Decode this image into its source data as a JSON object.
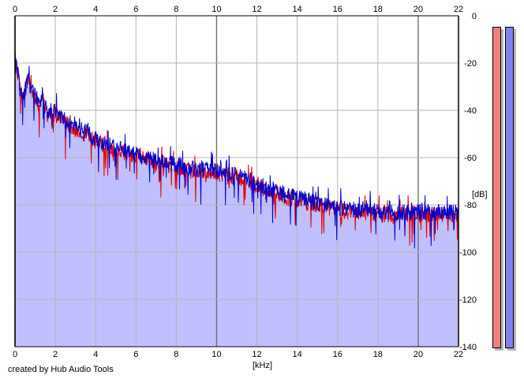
{
  "app": {
    "credit": "created by Hub Audio Tools"
  },
  "colors": {
    "fill": "#c0c0ff",
    "channel_left": "#e00000",
    "channel_right": "#0000d0",
    "meter_left": "#f08080",
    "meter_right": "#8080f0",
    "grid": "#b4b4b4",
    "grid_major": "#6e6e6e"
  },
  "meters": {
    "left": {
      "level_fraction": 1.0
    },
    "right": {
      "level_fraction": 1.0
    }
  },
  "chart_data": {
    "type": "area",
    "title": "",
    "xlabel": "[kHz]",
    "ylabel": "[dB]",
    "xlim": [
      0,
      22
    ],
    "ylim": [
      -140,
      0
    ],
    "x_ticks": [
      0,
      2,
      4,
      6,
      8,
      10,
      12,
      14,
      16,
      18,
      20,
      22
    ],
    "x_tick_labels": [
      "0",
      "2",
      "4",
      "6",
      "8",
      "10",
      "12",
      "14",
      "16",
      "18",
      "20",
      "22"
    ],
    "y_ticks": [
      0,
      -20,
      -40,
      -60,
      -80,
      -100,
      -120,
      -140
    ],
    "y_tick_labels": [
      "0",
      "-20",
      "-40",
      "-60",
      "-80",
      "-100",
      "-120",
      "-140"
    ],
    "x_axis_position": "top-and-bottom",
    "y_axis_position": "right",
    "grid": true,
    "series": [
      {
        "channel": "left",
        "x": [
          0,
          0.2,
          0.4,
          0.6,
          0.8,
          1.0,
          1.2,
          1.4,
          1.6,
          1.8,
          2,
          2.5,
          3,
          3.5,
          4,
          4.5,
          5,
          5.5,
          6,
          6.5,
          7,
          7.5,
          8,
          8.5,
          9,
          9.5,
          10,
          10.5,
          11,
          11.5,
          12,
          12.5,
          13,
          13.5,
          14,
          14.5,
          15,
          15.5,
          16,
          16.5,
          17,
          17.5,
          18,
          18.5,
          19,
          19.5,
          20,
          20.5,
          21,
          21.5,
          22
        ],
        "y": [
          -18,
          -28,
          -36,
          -28,
          -31,
          -34,
          -38,
          -36,
          -42,
          -40,
          -42,
          -45,
          -48,
          -50,
          -53,
          -55,
          -57,
          -58,
          -59,
          -61,
          -62,
          -63,
          -64,
          -65,
          -66,
          -66,
          -67,
          -68,
          -68,
          -70,
          -72,
          -74,
          -75,
          -77,
          -78,
          -79,
          -80,
          -81,
          -82,
          -83,
          -83,
          -83,
          -84,
          -84,
          -84,
          -84,
          -84,
          -84,
          -84,
          -84,
          -84
        ]
      },
      {
        "channel": "right",
        "x": [
          0,
          0.2,
          0.4,
          0.6,
          0.8,
          1.0,
          1.2,
          1.4,
          1.6,
          1.8,
          2,
          2.5,
          3,
          3.5,
          4,
          4.5,
          5,
          5.5,
          6,
          6.5,
          7,
          7.5,
          8,
          8.5,
          9,
          9.5,
          10,
          10.5,
          11,
          11.5,
          12,
          12.5,
          13,
          13.5,
          14,
          14.5,
          15,
          15.5,
          16,
          16.5,
          17,
          17.5,
          18,
          18.5,
          19,
          19.5,
          20,
          20.5,
          21,
          21.5,
          22
        ],
        "y": [
          -18,
          -27,
          -35,
          -27,
          -30,
          -33,
          -37,
          -35,
          -41,
          -39,
          -41,
          -44,
          -47,
          -49,
          -52,
          -54,
          -56,
          -57,
          -58,
          -60,
          -61,
          -62,
          -63,
          -64,
          -65,
          -65,
          -66,
          -67,
          -67,
          -69,
          -71,
          -73,
          -74,
          -76,
          -77,
          -78,
          -79,
          -80,
          -81,
          -82,
          -82,
          -82,
          -83,
          -83,
          -83,
          -83,
          -83,
          -83,
          -83,
          -83,
          -83
        ]
      }
    ]
  }
}
